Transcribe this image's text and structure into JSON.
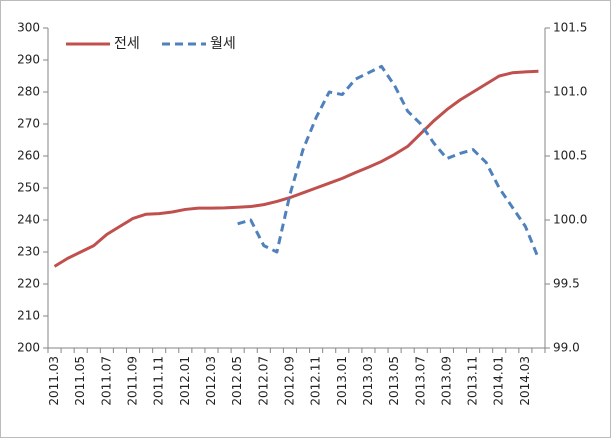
{
  "chart_data": {
    "type": "line",
    "categories": [
      "2011.03",
      null,
      "2011.05",
      null,
      "2011.07",
      null,
      "2011.09",
      null,
      "2011.11",
      null,
      "2012.01",
      null,
      "2012.03",
      null,
      "2012.05",
      null,
      "2012.07",
      null,
      "2012.09",
      null,
      "2012.11",
      null,
      "2013.01",
      null,
      "2013.03",
      null,
      "2013.05",
      null,
      "2013.07",
      null,
      "2013.09",
      null,
      "2013.11",
      null,
      "2014.01",
      null,
      "2014.03",
      null
    ],
    "series": [
      {
        "name": "전세",
        "color": "#c0504d",
        "style": "solid",
        "values": [
          225.5,
          228,
          230,
          232,
          235.5,
          238,
          240.5,
          241.8,
          242,
          242.5,
          243.3,
          243.7,
          243.7,
          243.8,
          244,
          244.2,
          244.8,
          245.8,
          247,
          248.5,
          250,
          251.5,
          253,
          254.8,
          256.5,
          258.3,
          260.5,
          263,
          267,
          271,
          274.5,
          277.5,
          280,
          282.5,
          285,
          286,
          286.3,
          286.5
        ]
      },
      {
        "name": "월세",
        "color": "#4f81bd",
        "style": "dashed",
        "axis": "y2",
        "values": [
          null,
          null,
          null,
          null,
          null,
          null,
          null,
          null,
          null,
          null,
          null,
          null,
          null,
          null,
          99.97,
          100.0,
          99.8,
          99.75,
          100.2,
          100.55,
          100.8,
          101.0,
          100.98,
          101.1,
          101.15,
          101.2,
          101.05,
          100.85,
          100.75,
          100.6,
          100.48,
          100.52,
          100.55,
          100.45,
          100.25,
          100.1,
          99.95,
          99.7
        ]
      }
    ],
    "ylim": [
      200,
      300
    ],
    "yticks": [
      200,
      210,
      220,
      230,
      240,
      250,
      260,
      270,
      280,
      290,
      300
    ],
    "y2lim": [
      99,
      101.5
    ],
    "y2ticks": [
      {
        "value": 99,
        "label": "99.0"
      },
      99.5,
      {
        "value": 100,
        "label": "100.0"
      },
      100.5,
      {
        "value": 101,
        "label": "101.0"
      },
      101.5
    ],
    "grid": false,
    "legend": "top-left"
  }
}
